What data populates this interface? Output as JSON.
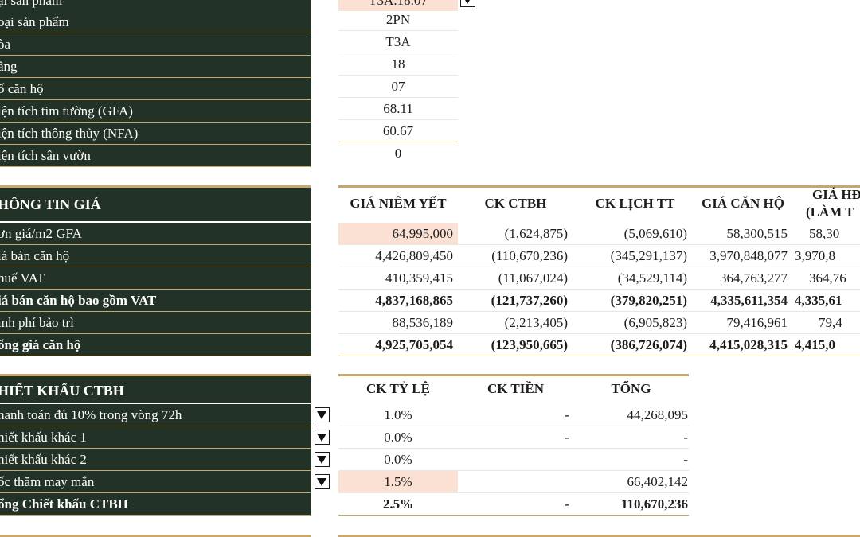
{
  "info": {
    "rows": [
      {
        "label": "ại sản phẩm",
        "value": "T3A.18.07"
      },
      {
        "label": "oại sản phẩm",
        "value": "2PN"
      },
      {
        "label": "òa",
        "value": "T3A"
      },
      {
        "label": "ầng",
        "value": "18"
      },
      {
        "label": "ố căn hộ",
        "value": "07"
      },
      {
        "label": "iện tích tim tường (GFA)",
        "value": "68.11"
      },
      {
        "label": "iện tích thông thủy (NFA)",
        "value": "60.67"
      },
      {
        "label": "iện tích sân vườn",
        "value": "0"
      }
    ]
  },
  "price": {
    "title": "HÔNG TIN GIÁ",
    "columns": [
      "GIÁ NIÊM YẾT",
      "CK CTBH",
      "CK LỊCH TT",
      "GIÁ CĂN HỘ",
      "GIÁ HĐ",
      "(LÀM T"
    ],
    "rows": [
      {
        "label": "ơn giá/m2 GFA",
        "bold": false,
        "values": [
          "64,995,000",
          "(1,624,875)",
          "(5,069,610)",
          "58,300,515",
          "58,30"
        ]
      },
      {
        "label": "iá bán căn hộ",
        "bold": false,
        "values": [
          "4,426,809,450",
          "(110,670,236)",
          "(345,291,137)",
          "3,970,848,077",
          "3,970,8"
        ]
      },
      {
        "label": "huế VAT",
        "bold": false,
        "values": [
          "410,359,415",
          "(11,067,024)",
          "(34,529,114)",
          "364,763,277",
          "364,76"
        ]
      },
      {
        "label": "iá bán căn hộ bao gồm VAT",
        "bold": true,
        "values": [
          "4,837,168,865",
          "(121,737,260)",
          "(379,820,251)",
          "4,335,611,354",
          "4,335,61"
        ]
      },
      {
        "label": "inh phí bảo trì",
        "bold": false,
        "values": [
          "88,536,189",
          "(2,213,405)",
          "(6,905,823)",
          "79,416,961",
          "79,4"
        ]
      },
      {
        "label": "ổng giá căn hộ",
        "bold": true,
        "values": [
          "4,925,705,054",
          "(123,950,665)",
          "(386,726,074)",
          "4,415,028,315",
          "4,415,0"
        ]
      }
    ]
  },
  "discount": {
    "title": "HIẾT KHẤU CTBH",
    "columns": [
      "CK TỶ LỆ",
      "CK TIỀN",
      "TỔNG"
    ],
    "rows": [
      {
        "label": "hanh toán đủ 10% trong vòng 72h",
        "rate": "1.0%",
        "money": "-",
        "total": "44,268,095"
      },
      {
        "label": "hiết khấu khác 1",
        "rate": "0.0%",
        "money": "-",
        "total": "-"
      },
      {
        "label": "hiết khấu khác 2",
        "rate": "0.0%",
        "money": "",
        "total": "-"
      },
      {
        "label": "ốc thăm may mắn",
        "rate": "1.5%",
        "money": "",
        "total": "66,402,142"
      }
    ],
    "total_row": {
      "label": "ổng Chiết khấu CTBH",
      "rate": "2.5%",
      "money": "-",
      "total": "110,670,236"
    }
  },
  "colors": {
    "label_bg": "#233227",
    "accent_gold": "#c9a66b",
    "highlight_pink": "#fbe1d4"
  },
  "icons": {
    "dropdown": "dropdown-arrow-icon"
  }
}
